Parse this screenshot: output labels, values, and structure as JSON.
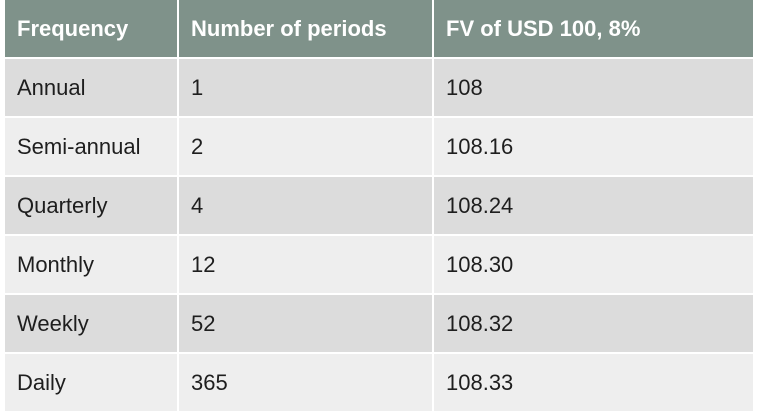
{
  "table": {
    "headers": [
      "Frequency",
      "Number of periods",
      "FV of USD 100, 8%"
    ],
    "rows": [
      [
        "Annual",
        "1",
        "108"
      ],
      [
        "Semi-annual",
        "2",
        "108.16"
      ],
      [
        "Quarterly",
        "4",
        "108.24"
      ],
      [
        "Monthly",
        "12",
        "108.30"
      ],
      [
        "Weekly",
        "52",
        "108.32"
      ],
      [
        "Daily",
        "365",
        "108.33"
      ]
    ]
  },
  "colors": {
    "header_bg": "#7f928a",
    "header_text": "#ffffff",
    "row_odd_bg": "#dcdcdc",
    "row_even_bg": "#eeeeee",
    "cell_text": "#1e1e1e"
  }
}
